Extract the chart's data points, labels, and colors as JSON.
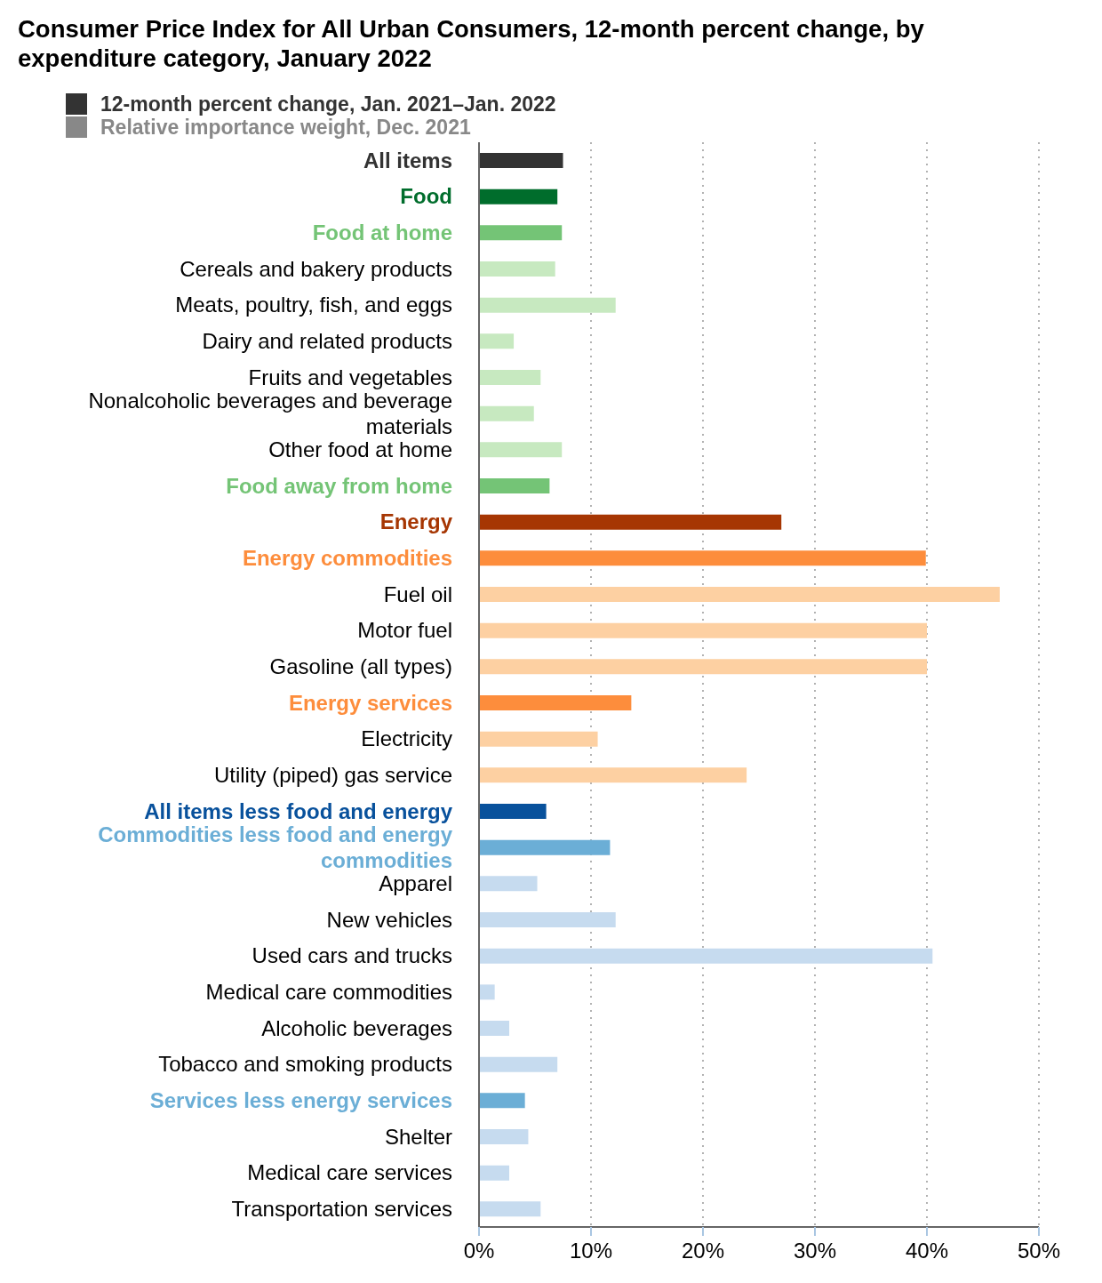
{
  "chart_data": {
    "type": "bar",
    "orientation": "horizontal",
    "title": "Consumer Price Index for All Urban Consumers, 12-month percent change, by expenditure category, January 2022",
    "categories": [
      "All items",
      "Food",
      "Food at home",
      "Cereals and bakery products",
      "Meats, poultry, fish, and eggs",
      "Dairy and related products",
      "Fruits and vegetables",
      "Nonalcoholic beverages and beverage materials",
      "Other food at home",
      "Food away from home",
      "Energy",
      "Energy commodities",
      "Fuel oil",
      "Motor fuel",
      "Gasoline (all types)",
      "Energy services",
      "Electricity",
      "Utility (piped) gas service",
      "All items less food and energy",
      "Commodities less food and energy commodities",
      "Apparel",
      "New vehicles",
      "Used cars and trucks",
      "Medical care commodities",
      "Alcoholic beverages",
      "Tobacco and smoking products",
      "Services less energy services",
      "Shelter",
      "Medical care services",
      "Transportation services"
    ],
    "series": [
      {
        "name": "12-month percent change, Jan. 2021–Jan. 2022",
        "color": "#333333",
        "colors": [
          "#333333",
          "#006d2c",
          "#74c476",
          "#c7e9c0",
          "#c7e9c0",
          "#c7e9c0",
          "#c7e9c0",
          "#c7e9c0",
          "#c7e9c0",
          "#74c476",
          "#a63603",
          "#fd8d3c",
          "#fdd0a2",
          "#fdd0a2",
          "#fdd0a2",
          "#fd8d3c",
          "#fdd0a2",
          "#fdd0a2",
          "#08519c",
          "#6baed6",
          "#c6dbef",
          "#c6dbef",
          "#c6dbef",
          "#c6dbef",
          "#c6dbef",
          "#c6dbef",
          "#6baed6",
          "#c6dbef",
          "#c6dbef",
          "#c6dbef"
        ],
        "values": [
          7.5,
          7.0,
          7.4,
          6.8,
          12.2,
          3.1,
          5.5,
          4.9,
          7.4,
          6.3,
          27.0,
          39.9,
          46.5,
          40.0,
          40.0,
          13.6,
          10.6,
          23.9,
          6.0,
          11.7,
          5.2,
          12.2,
          40.5,
          1.4,
          2.7,
          7.0,
          4.1,
          4.4,
          2.7,
          5.5
        ]
      },
      {
        "name": "Relative importance weight, Dec. 2021",
        "color": "#888888",
        "values": [
          null,
          null,
          null,
          null,
          null,
          null,
          null,
          null,
          null,
          null,
          null,
          null,
          null,
          null,
          null,
          null,
          null,
          null,
          null,
          null,
          null,
          null,
          null,
          null,
          null,
          null,
          null,
          null,
          null,
          null
        ]
      }
    ],
    "xlim": [
      0,
      50
    ],
    "xticks": [
      {
        "value": 0,
        "label": "0%"
      },
      {
        "value": 10,
        "label": "10%"
      },
      {
        "value": 20,
        "label": "20%"
      },
      {
        "value": 30,
        "label": "30%"
      },
      {
        "value": 40,
        "label": "40%"
      },
      {
        "value": 50,
        "label": "50%"
      }
    ],
    "grid": "x",
    "legend": "top left"
  }
}
